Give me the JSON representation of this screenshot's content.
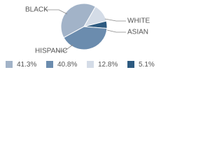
{
  "chart_data": {
    "type": "pie",
    "categories": [
      "BLACK",
      "HISPANIC",
      "WHITE",
      "ASIAN"
    ],
    "values": [
      41.3,
      40.8,
      12.8,
      5.1
    ],
    "value_labels": [
      "41.3%",
      "40.8%",
      "12.8%",
      "5.1%"
    ],
    "colors": [
      "#a2b3c8",
      "#6b8cae",
      "#d4dce7",
      "#2d5a80"
    ]
  }
}
